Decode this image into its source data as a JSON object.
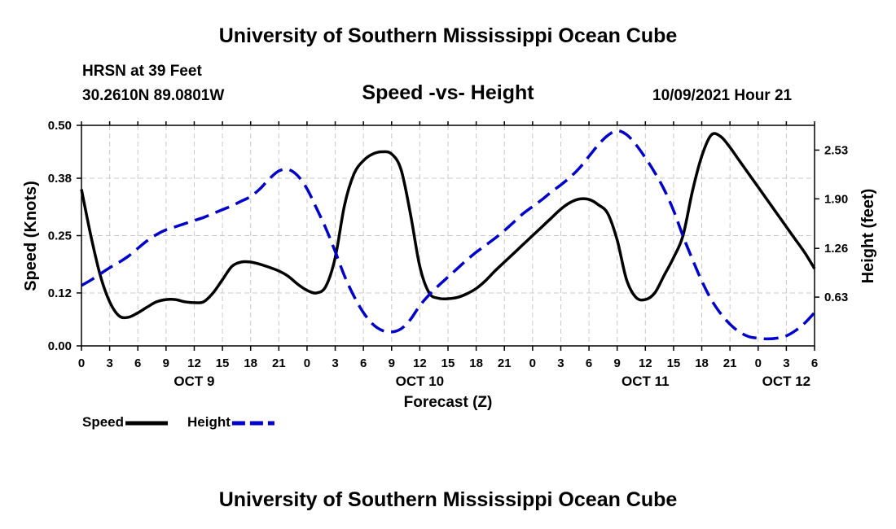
{
  "header": {
    "title": "University of Southern Mississippi Ocean Cube",
    "station": "HRSN at 39 Feet",
    "coords": "30.2610N  89.0801W",
    "subtitle": "Speed -vs- Height",
    "datetime": "10/09/2021 Hour 21"
  },
  "footer": {
    "title": "University of Southern Mississippi Ocean Cube"
  },
  "chart_data": {
    "type": "line",
    "title": "Speed -vs- Height",
    "xlabel": "Forecast (Z)",
    "ylabel": "Speed (Knots)",
    "y2label": "Height (feet)",
    "x_range": [
      0,
      78
    ],
    "ylim": [
      0,
      0.5
    ],
    "y2lim": [
      0.0,
      2.85
    ],
    "grid": true,
    "x_ticks": [
      0,
      3,
      6,
      9,
      12,
      15,
      18,
      21,
      24,
      27,
      30,
      33,
      36,
      39,
      42,
      45,
      48,
      51,
      54,
      57,
      60,
      63,
      66,
      69,
      72,
      75,
      78
    ],
    "x_tick_labels": [
      "0",
      "3",
      "6",
      "9",
      "12",
      "15",
      "18",
      "21",
      "0",
      "3",
      "6",
      "9",
      "12",
      "15",
      "18",
      "21",
      "0",
      "3",
      "6",
      "9",
      "12",
      "15",
      "18",
      "21",
      "0",
      "3",
      "6"
    ],
    "day_labels": [
      {
        "x": 12,
        "label": "OCT 9"
      },
      {
        "x": 36,
        "label": "OCT 10"
      },
      {
        "x": 60,
        "label": "OCT 11"
      },
      {
        "x": 75,
        "label": "OCT 12"
      }
    ],
    "y_ticks": [
      0.0,
      0.12,
      0.25,
      0.38,
      0.5
    ],
    "y_tick_labels": [
      "0.00",
      "0.12",
      "0.25",
      "0.38",
      "0.50"
    ],
    "y2_ticks": [
      0.63,
      1.26,
      1.9,
      2.53
    ],
    "y2_tick_labels": [
      "0.63",
      "1.26",
      "1.90",
      "2.53"
    ],
    "series": [
      {
        "name": "Speed",
        "axis": "left",
        "color": "#000000",
        "dash": "solid",
        "x": [
          0,
          1,
          2,
          3,
          4,
          5,
          6,
          7,
          8,
          9,
          10,
          11,
          12,
          13,
          14,
          15,
          16,
          17,
          18,
          19,
          20,
          21,
          22,
          23,
          24,
          25,
          26,
          27,
          28,
          29,
          30,
          31,
          32,
          33,
          34,
          35,
          36,
          37,
          38,
          39,
          40,
          41,
          42,
          43,
          44,
          45,
          46,
          47,
          48,
          49,
          50,
          51,
          52,
          53,
          54,
          55,
          56,
          57,
          58,
          59,
          60,
          61,
          62,
          63,
          64,
          65,
          66,
          67,
          68,
          69,
          70,
          71,
          72,
          73,
          74,
          75,
          76,
          77,
          78
        ],
        "values": [
          0.355,
          0.25,
          0.16,
          0.1,
          0.068,
          0.065,
          0.075,
          0.088,
          0.1,
          0.105,
          0.105,
          0.1,
          0.098,
          0.1,
          0.12,
          0.15,
          0.18,
          0.19,
          0.19,
          0.185,
          0.178,
          0.17,
          0.158,
          0.14,
          0.126,
          0.12,
          0.135,
          0.2,
          0.32,
          0.39,
          0.42,
          0.435,
          0.44,
          0.435,
          0.4,
          0.3,
          0.18,
          0.12,
          0.108,
          0.107,
          0.11,
          0.118,
          0.13,
          0.148,
          0.17,
          0.19,
          0.21,
          0.23,
          0.25,
          0.27,
          0.29,
          0.31,
          0.325,
          0.333,
          0.332,
          0.32,
          0.3,
          0.24,
          0.15,
          0.11,
          0.105,
          0.12,
          0.16,
          0.2,
          0.25,
          0.35,
          0.43,
          0.478,
          0.475,
          0.45,
          0.42,
          0.39,
          0.36,
          0.33,
          0.3,
          0.27,
          0.24,
          0.21,
          0.175
        ]
      },
      {
        "name": "Height",
        "axis": "right",
        "color": "#0000cc",
        "dash": "dashed",
        "x": [
          0,
          1,
          2,
          3,
          4,
          5,
          6,
          7,
          8,
          9,
          10,
          11,
          12,
          13,
          14,
          15,
          16,
          17,
          18,
          19,
          20,
          21,
          22,
          23,
          24,
          25,
          26,
          27,
          28,
          29,
          30,
          31,
          32,
          33,
          34,
          35,
          36,
          37,
          38,
          39,
          40,
          41,
          42,
          43,
          44,
          45,
          46,
          47,
          48,
          49,
          50,
          51,
          52,
          53,
          54,
          55,
          56,
          57,
          58,
          59,
          60,
          61,
          62,
          63,
          64,
          65,
          66,
          67,
          68,
          69,
          70,
          71,
          72,
          73,
          74,
          75,
          76,
          77,
          78
        ],
        "values": [
          0.78,
          0.85,
          0.93,
          1.01,
          1.08,
          1.16,
          1.26,
          1.36,
          1.44,
          1.5,
          1.54,
          1.58,
          1.62,
          1.66,
          1.71,
          1.76,
          1.81,
          1.87,
          1.93,
          2.03,
          2.16,
          2.26,
          2.28,
          2.2,
          2.03,
          1.78,
          1.52,
          1.22,
          0.9,
          0.64,
          0.43,
          0.28,
          0.2,
          0.18,
          0.22,
          0.34,
          0.52,
          0.66,
          0.78,
          0.89,
          1.0,
          1.11,
          1.21,
          1.3,
          1.39,
          1.49,
          1.6,
          1.71,
          1.8,
          1.89,
          1.99,
          2.08,
          2.18,
          2.3,
          2.45,
          2.6,
          2.72,
          2.78,
          2.73,
          2.6,
          2.43,
          2.24,
          2.02,
          1.75,
          1.42,
          1.12,
          0.84,
          0.6,
          0.42,
          0.28,
          0.18,
          0.12,
          0.1,
          0.09,
          0.1,
          0.13,
          0.2,
          0.3,
          0.43
        ]
      }
    ],
    "legend": [
      {
        "label": "Speed",
        "color": "#000000",
        "dash": "solid"
      },
      {
        "label": "Height",
        "color": "#0000cc",
        "dash": "dashed"
      }
    ]
  }
}
